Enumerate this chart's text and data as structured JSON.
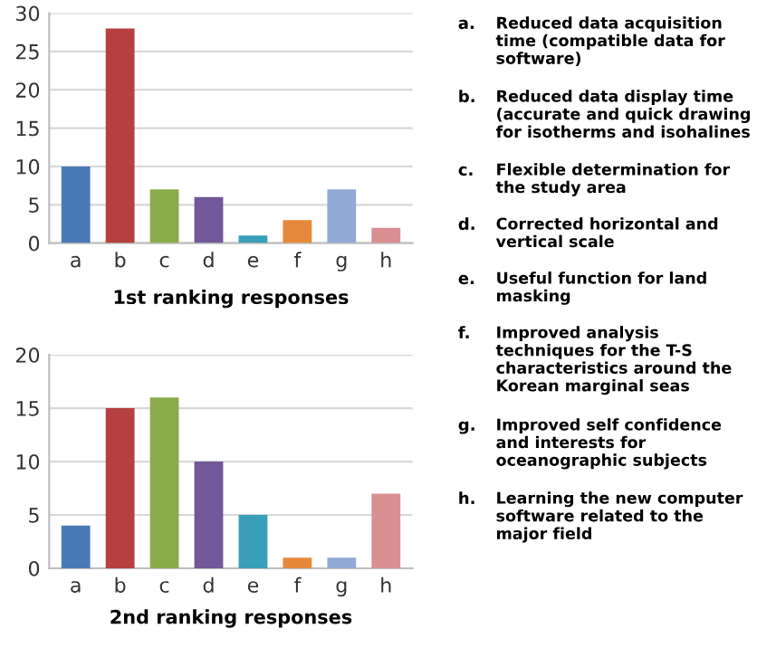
{
  "chart_data": [
    {
      "type": "bar",
      "title": "1st ranking responses",
      "categories": [
        "a",
        "b",
        "c",
        "d",
        "e",
        "f",
        "g",
        "h"
      ],
      "values": [
        10,
        28,
        7,
        6,
        1,
        3,
        7,
        2
      ],
      "colors": [
        "#4a7ab5",
        "#b5403f",
        "#8bab4a",
        "#72579a",
        "#3a9fb8",
        "#e6883a",
        "#92a9d6",
        "#d98f93"
      ],
      "ylim": [
        0,
        30
      ],
      "yticks": [
        0,
        5,
        10,
        15,
        20,
        25,
        30
      ],
      "grid": "y",
      "legend": false
    },
    {
      "type": "bar",
      "title": "2nd ranking responses",
      "categories": [
        "a",
        "b",
        "c",
        "d",
        "e",
        "f",
        "g",
        "h"
      ],
      "values": [
        4,
        15,
        16,
        10,
        5,
        1,
        1,
        7
      ],
      "colors": [
        "#4a7ab5",
        "#b5403f",
        "#8bab4a",
        "#72579a",
        "#3a9fb8",
        "#e6883a",
        "#92a9d6",
        "#d98f93"
      ],
      "ylim": [
        0,
        20
      ],
      "yticks": [
        0,
        5,
        10,
        15,
        20
      ],
      "grid": "y",
      "legend": false
    },
    {
      "type": "other",
      "annotations": [
        "a. Reduced data acquisition time (compatible data for software)",
        "b. Reduced data display time (accurate and quick drawing for isotherms and isohalines",
        "c. Flexible determination for the study area",
        "d. Corrected horizontal and vertical scale",
        "e. Useful function for land masking",
        "f. Improved analysis techniques for the T-S characteristics around the Korean marginal seas",
        "g. Improved self confidence and interests for oceanographic subjects",
        "h. Learning the new computer software related to the major field"
      ]
    }
  ]
}
